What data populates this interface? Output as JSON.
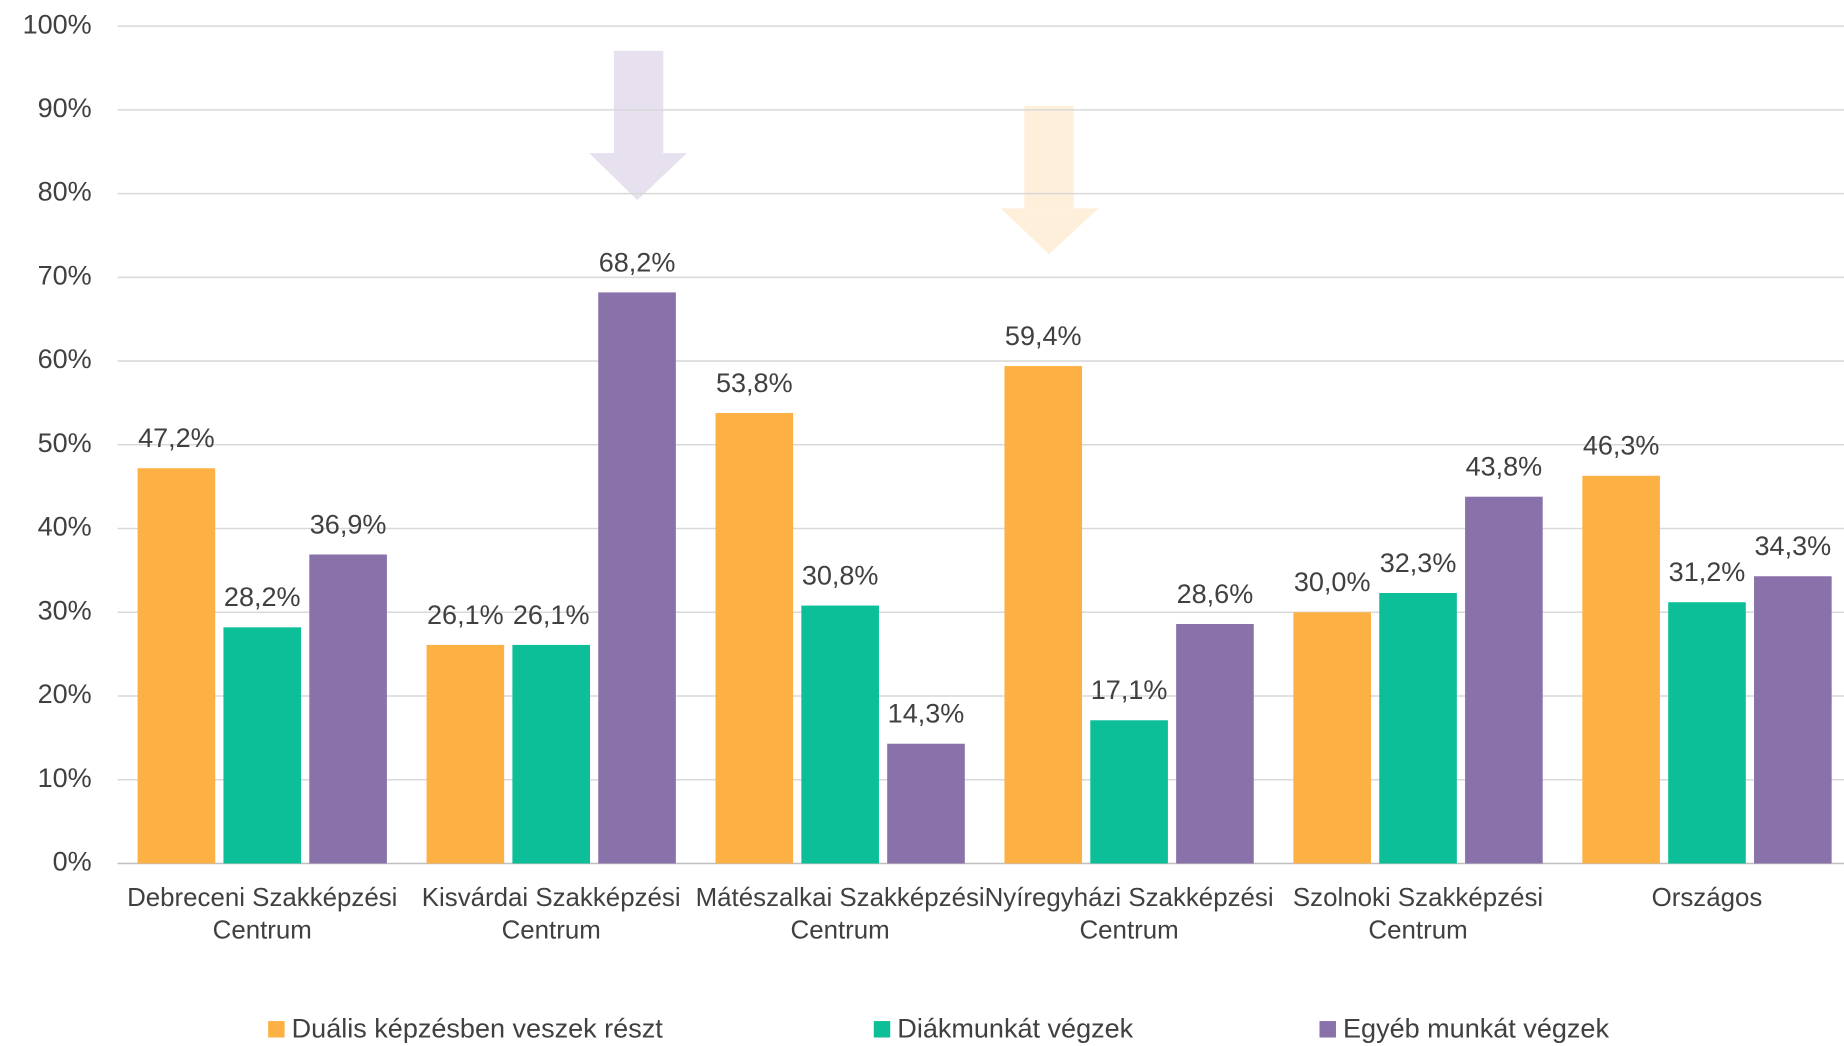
{
  "chart_data": {
    "type": "bar",
    "categories": [
      "Debreceni Szakképzési Centrum",
      "Kisvárdai Szakképzési Centrum",
      "Mátészalkai Szakképzési Centrum",
      "Nyíregyházi Szakképzési Centrum",
      "Szolnoki Szakképzési Centrum",
      "Országos"
    ],
    "series": [
      {
        "name": "Duális képzésben veszek részt",
        "color": "#fdb145",
        "values": [
          47.2,
          26.1,
          53.8,
          59.4,
          30.0,
          46.3
        ],
        "value_labels": [
          "47,2%",
          "26,1%",
          "53,8%",
          "59,4%",
          "30,0%",
          "46,3%"
        ]
      },
      {
        "name": "Diákmunkát végzek",
        "color": "#0dbf98",
        "values": [
          28.2,
          26.1,
          30.8,
          17.1,
          32.3,
          31.2
        ],
        "value_labels": [
          "28,2%",
          "26,1%",
          "30,8%",
          "17,1%",
          "32,3%",
          "31,2%"
        ]
      },
      {
        "name": "Egyéb munkát végzek",
        "color": "#8971aa",
        "values": [
          36.9,
          68.2,
          14.3,
          28.6,
          43.8,
          34.3
        ],
        "value_labels": [
          "36,9%",
          "68,2%",
          "14,3%",
          "28,6%",
          "43,8%",
          "34,3%"
        ]
      }
    ],
    "ylim": [
      0,
      100
    ],
    "yticks": [
      {
        "value": 0,
        "label": "0%"
      },
      {
        "value": 10,
        "label": "10%"
      },
      {
        "value": 20,
        "label": "20%"
      },
      {
        "value": 30,
        "label": "30%"
      },
      {
        "value": 40,
        "label": "40%"
      },
      {
        "value": 50,
        "label": "50%"
      },
      {
        "value": 60,
        "label": "60%"
      },
      {
        "value": 70,
        "label": "70%"
      },
      {
        "value": 80,
        "label": "80%"
      },
      {
        "value": 90,
        "label": "90%"
      },
      {
        "value": 100,
        "label": "100%"
      }
    ],
    "grid": true,
    "legend": "bottom"
  }
}
